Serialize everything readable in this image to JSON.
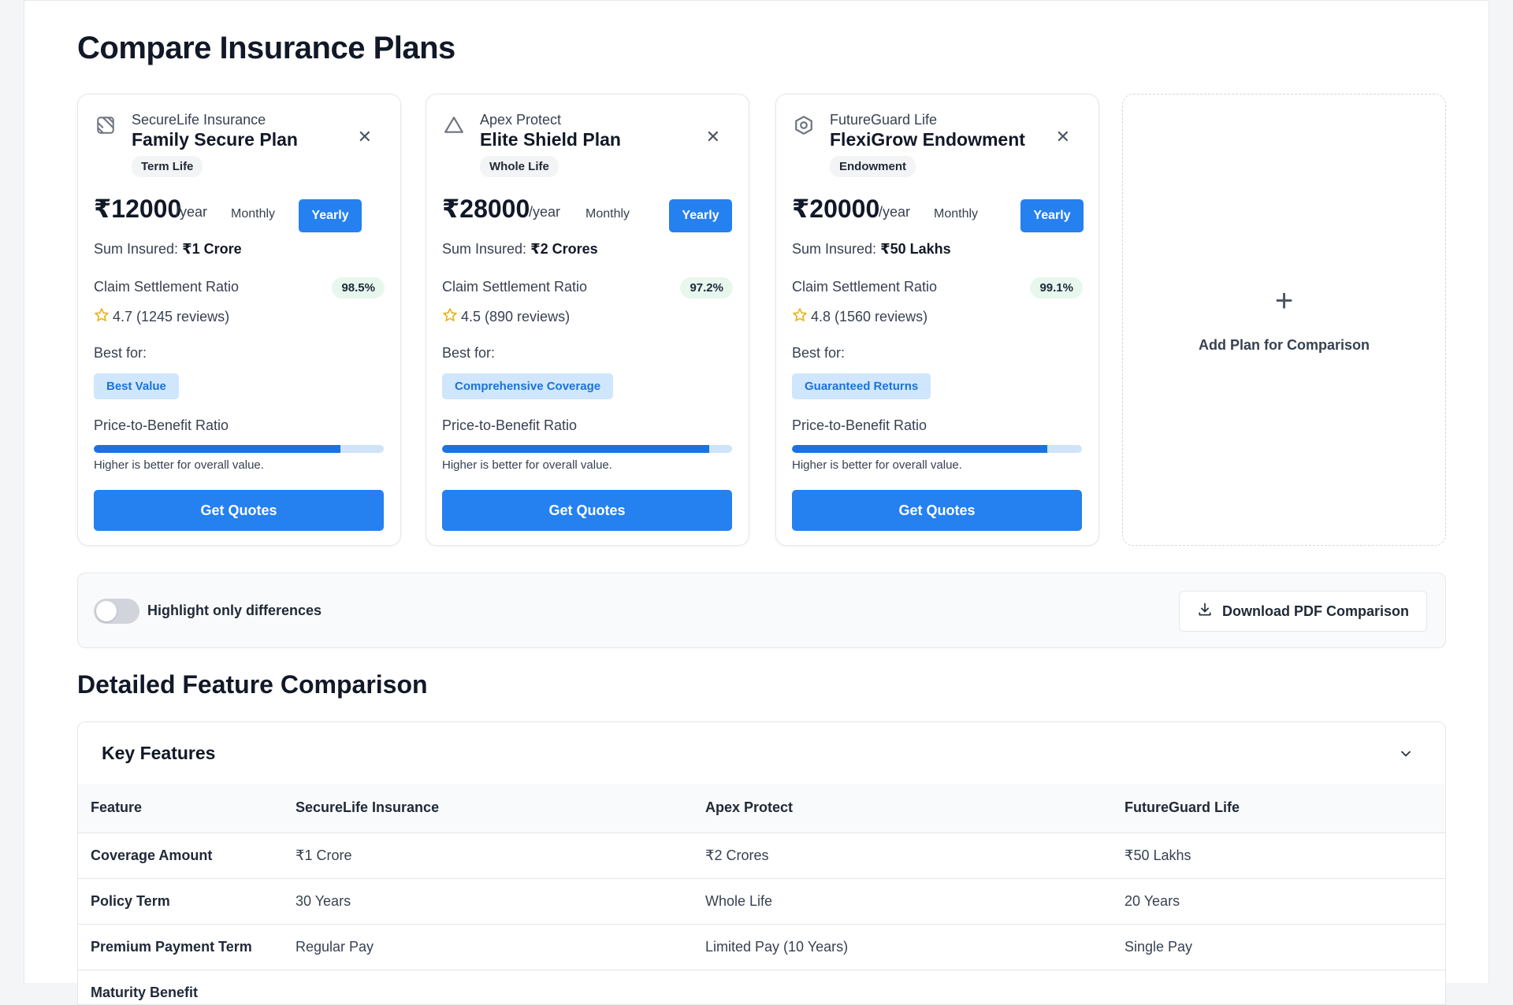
{
  "page": {
    "title": "Compare Insurance Plans"
  },
  "plans": [
    {
      "provider": "SecureLife Insurance",
      "name": "Family Secure Plan",
      "type": "Term Life",
      "price": "₹12000",
      "per": "/year",
      "monthly_label": "Monthly",
      "yearly_label": "Yearly",
      "sum_label": "Sum Insured: ",
      "sum_value": "₹1 Crore",
      "csr_label": "Claim Settlement Ratio",
      "csr_value": "98.5%",
      "rating": "4.7 (1245 reviews)",
      "best_for_label": "Best for:",
      "best_for": "Best Value",
      "ptb_label": "Price-to-Benefit Ratio",
      "ptb_ratio": 0.85,
      "ptb_note": "Higher is better for overall value.",
      "cta": "Get Quotes",
      "icon": "shield-grid-icon"
    },
    {
      "provider": "Apex Protect",
      "name": "Elite Shield Plan",
      "type": "Whole Life",
      "price": "₹28000",
      "per": "/year",
      "monthly_label": "Monthly",
      "yearly_label": "Yearly",
      "sum_label": "Sum Insured: ",
      "sum_value": "₹2 Crores",
      "csr_label": "Claim Settlement Ratio",
      "csr_value": "97.2%",
      "rating": "4.5 (890 reviews)",
      "best_for_label": "Best for:",
      "best_for": "Comprehensive Coverage",
      "ptb_label": "Price-to-Benefit Ratio",
      "ptb_ratio": 0.92,
      "ptb_note": "Higher is better for overall value.",
      "cta": "Get Quotes",
      "icon": "triangle-icon"
    },
    {
      "provider": "FutureGuard Life",
      "name": "FlexiGrow Endowment",
      "type": "Endowment",
      "price": "₹20000",
      "per": "/year",
      "monthly_label": "Monthly",
      "yearly_label": "Yearly",
      "sum_label": "Sum Insured: ",
      "sum_value": "₹50 Lakhs",
      "csr_label": "Claim Settlement Ratio",
      "csr_value": "99.1%",
      "rating": "4.8 (1560 reviews)",
      "best_for_label": "Best for:",
      "best_for": "Guaranteed Returns",
      "ptb_label": "Price-to-Benefit Ratio",
      "ptb_ratio": 0.88,
      "ptb_note": "Higher is better for overall value.",
      "cta": "Get Quotes",
      "icon": "hexagon-icon"
    }
  ],
  "add_plan": {
    "label": "Add Plan for Comparison",
    "icon": "plus-icon"
  },
  "toolbar": {
    "toggle_label": "Highlight only differences",
    "pdf_label": "Download PDF Comparison"
  },
  "detail": {
    "title": "Detailed Feature Comparison",
    "section_title": "Key Features",
    "columns": [
      "Feature",
      "SecureLife Insurance",
      "Apex Protect",
      "FutureGuard Life"
    ],
    "rows": [
      [
        "Coverage Amount",
        "₹1 Crore",
        "₹2 Crores",
        "₹50 Lakhs"
      ],
      [
        "Policy Term",
        "30 Years",
        "Whole Life",
        "20 Years"
      ],
      [
        "Premium Payment Term",
        "Regular Pay",
        "Limited Pay (10 Years)",
        "Single Pay"
      ],
      [
        "Maturity Benefit",
        "",
        "",
        ""
      ]
    ]
  },
  "colors": {
    "accent": "#2580f0",
    "badge_blue_bg": "#cfe6fc",
    "badge_blue_text": "#1a73d9",
    "csr_bg": "#e8f7ee",
    "star": "#e7b416"
  }
}
